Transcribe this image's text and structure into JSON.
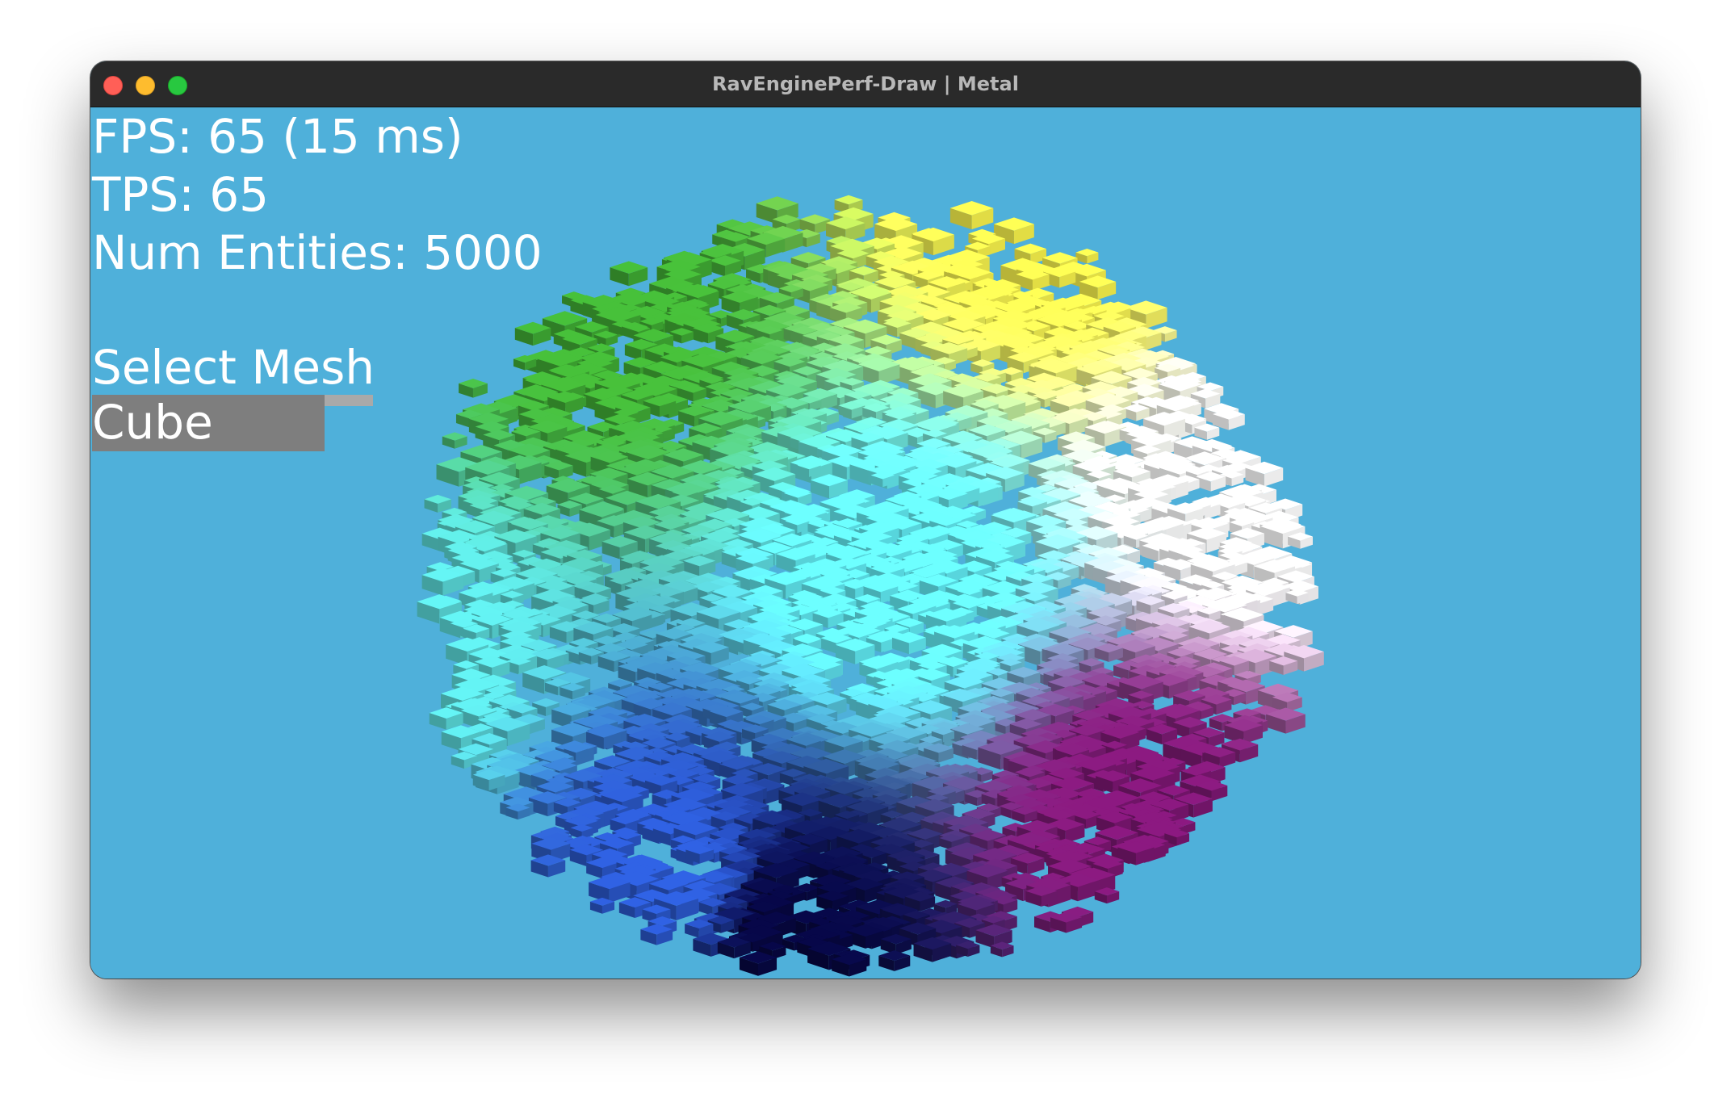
{
  "window": {
    "title": "RavEnginePerf-Draw | Metal",
    "background_color": "#4fb0da"
  },
  "titlebar": {
    "buttons": [
      "close",
      "minimize",
      "zoom"
    ],
    "colors": {
      "close": "#ff5f57",
      "minimize": "#febc2e",
      "zoom": "#28c840"
    }
  },
  "hud": {
    "fps": "FPS: 65 (15 ms)",
    "tps": "TPS: 65",
    "entities": "Num Entities: 5000",
    "select_mesh_label": "Select Mesh",
    "mesh_dropdown_value": "Cube"
  },
  "scene": {
    "description_icon": "cube-cloud",
    "corner_colors": {
      "top_left": "#3ea832",
      "top_right": "#f6f04a",
      "right": "#ffffff",
      "left": "#58d6d6",
      "bottom_left": "#2a56c8",
      "bottom": "#06063f",
      "bottom_right": "#7a1670",
      "center": "#5fe8f0"
    }
  }
}
